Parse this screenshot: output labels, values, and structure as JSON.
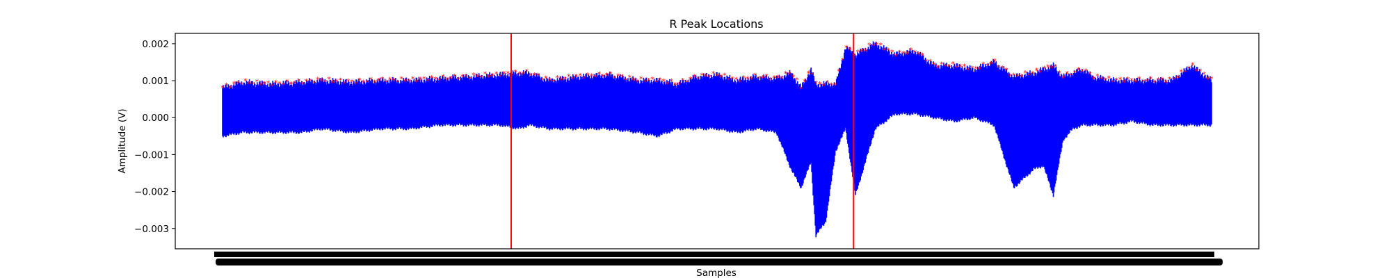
{
  "chart_data": {
    "type": "line",
    "title": "R Peak Locations",
    "xlabel": "Samples",
    "ylabel": "Amplitude (V)",
    "ylim": [
      -0.00355,
      0.00228
    ],
    "y_ticks": [
      0.002,
      0.001,
      0.0,
      -0.001,
      -0.002,
      -0.003
    ],
    "y_tick_labels": [
      "0.002",
      "0.001",
      "0.000",
      "−0.001",
      "−0.002",
      "−0.003"
    ],
    "x_tick_labels_illegible": true,
    "grid": false,
    "vertical_markers_fraction": [
      0.31,
      0.626
    ],
    "colors": {
      "signal": "#0000ff",
      "peaks": "#ff0000",
      "markers": "#ff0000",
      "axes": "#000000"
    },
    "series": [
      {
        "name": "",
        "role": "ecg-envelope",
        "color": "#0000ff",
        "x_fraction": [
          0.0,
          0.02,
          0.05,
          0.08,
          0.1,
          0.13,
          0.16,
          0.19,
          0.22,
          0.25,
          0.28,
          0.3,
          0.31,
          0.33,
          0.36,
          0.39,
          0.42,
          0.44,
          0.46,
          0.48,
          0.5,
          0.52,
          0.54,
          0.56,
          0.575,
          0.585,
          0.595,
          0.6,
          0.61,
          0.62,
          0.63,
          0.64,
          0.66,
          0.68,
          0.7,
          0.72,
          0.74,
          0.76,
          0.78,
          0.8,
          0.82,
          0.83,
          0.84,
          0.85,
          0.86,
          0.87,
          0.88,
          0.9,
          0.92,
          0.94,
          0.96,
          0.98,
          1.0
        ],
        "upper": [
          0.0008,
          0.00095,
          0.0009,
          0.00095,
          0.001,
          0.00095,
          0.001,
          0.001,
          0.00105,
          0.0011,
          0.00115,
          0.0012,
          0.0012,
          0.001,
          0.0011,
          0.00115,
          0.001,
          0.001,
          0.0009,
          0.0011,
          0.00115,
          0.001,
          0.0011,
          0.00105,
          0.0012,
          0.0008,
          0.0013,
          0.0009,
          0.0009,
          0.0009,
          0.0019,
          0.0017,
          0.002,
          0.0017,
          0.0018,
          0.0014,
          0.0014,
          0.0013,
          0.0015,
          0.0011,
          0.0012,
          0.0013,
          0.0014,
          0.0011,
          0.0012,
          0.0013,
          0.0011,
          0.001,
          0.001,
          0.001,
          0.001,
          0.0014,
          0.001
        ],
        "lower": [
          -0.0005,
          -0.0004,
          -0.0004,
          -0.0004,
          -0.0003,
          -0.0004,
          -0.0003,
          -0.0003,
          -0.0002,
          -0.0002,
          -0.0002,
          -0.0003,
          -0.0002,
          -0.0003,
          -0.0003,
          -0.0003,
          -0.0004,
          -0.0005,
          -0.0003,
          -0.0003,
          -0.0003,
          -0.0004,
          -0.0003,
          -0.0004,
          -0.0014,
          -0.0019,
          -0.0012,
          -0.0032,
          -0.0028,
          -0.0009,
          -0.0003,
          -0.0021,
          -0.0003,
          0.0001,
          0.0001,
          0.0,
          -0.0001,
          0.0,
          -0.0002,
          -0.0019,
          -0.0014,
          -0.0013,
          -0.0021,
          -0.0006,
          -0.0003,
          -0.0002,
          -0.0002,
          -0.0002,
          -0.0001,
          -0.0002,
          -0.0002,
          -0.0002,
          -0.0002
        ]
      }
    ]
  }
}
